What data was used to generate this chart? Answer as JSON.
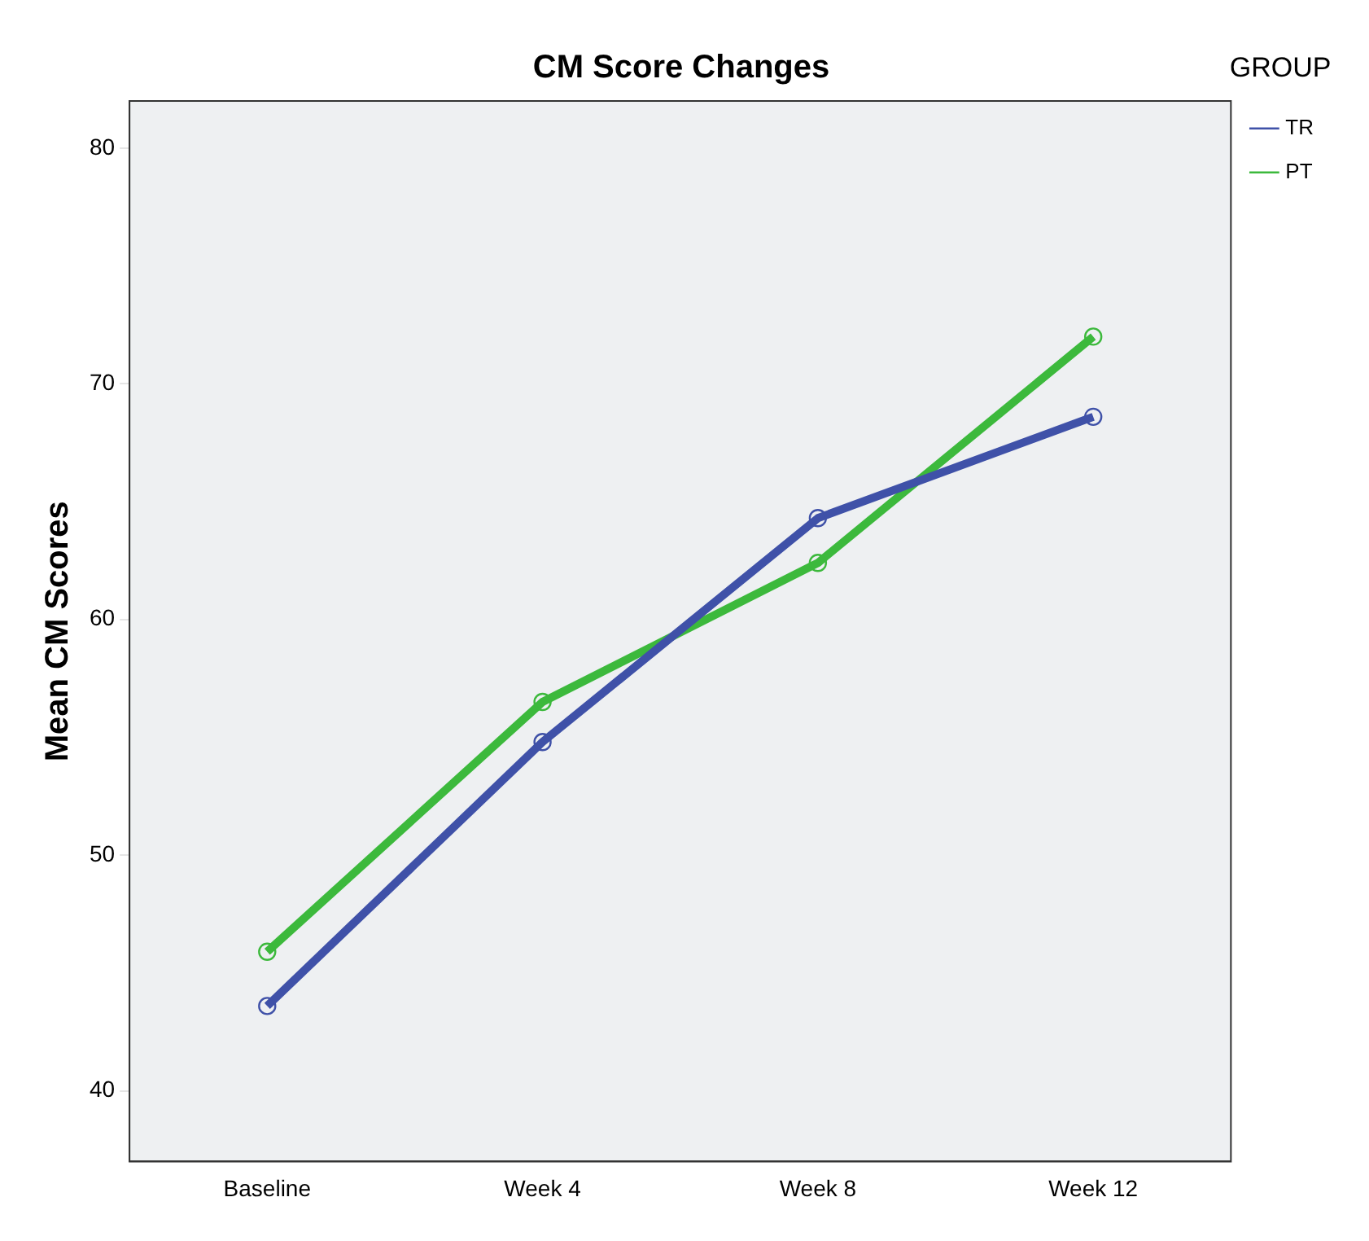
{
  "chart_data": {
    "type": "line",
    "title": "CM Score Changes",
    "ylabel": "Mean CM Scores",
    "legend_title": "GROUP",
    "categories": [
      "Baseline",
      "Week 4",
      "Week 8",
      "Week 12"
    ],
    "series": [
      {
        "name": "TR",
        "color": "#3f51a8",
        "values": [
          43.6,
          54.8,
          64.3,
          68.6
        ]
      },
      {
        "name": "PT",
        "color": "#3cb93c",
        "values": [
          45.9,
          56.5,
          62.4,
          72.0
        ]
      }
    ],
    "ylim": [
      37,
      82
    ],
    "yticks": [
      40,
      50,
      60,
      70,
      80
    ],
    "grid": false,
    "legend": "top right",
    "marker": "circle",
    "line_style": "solid"
  }
}
